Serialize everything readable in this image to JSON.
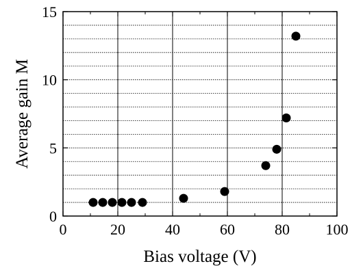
{
  "chart_data": {
    "type": "scatter",
    "title": "",
    "xlabel": "Bias voltage (V)",
    "ylabel": "Average gain M",
    "xlim": [
      0,
      100
    ],
    "ylim": [
      0,
      15
    ],
    "xticks": [
      0,
      20,
      40,
      60,
      80,
      100
    ],
    "yticks": [
      0,
      5,
      10,
      15
    ],
    "x_tick_labels": [
      "0",
      "20",
      "40",
      "60",
      "80",
      "100"
    ],
    "y_tick_labels": [
      "0",
      "5",
      "10",
      "15"
    ],
    "grid": {
      "major_x": "solid",
      "minor_y": "dotted",
      "minor_y_step": 1
    },
    "marker": "filled-circle",
    "marker_color": "#000000",
    "series": [
      {
        "x": [
          11,
          14.5,
          18,
          21.5,
          25,
          29,
          44,
          59,
          74,
          78,
          81.5,
          85
        ],
        "y": [
          1.0,
          1.0,
          1.0,
          1.0,
          1.0,
          1.0,
          1.3,
          1.8,
          3.7,
          4.9,
          7.2,
          13.2
        ]
      }
    ]
  }
}
